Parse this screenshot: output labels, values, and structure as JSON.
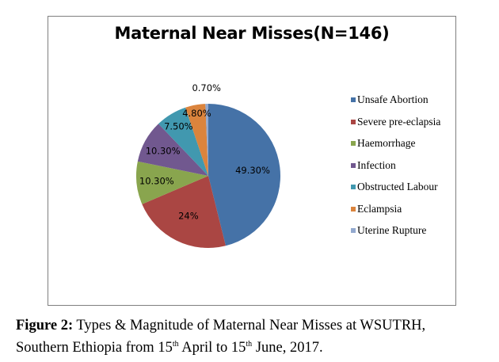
{
  "chart_data": {
    "type": "pie",
    "title": "Maternal Near Misses(N=146)",
    "slices": [
      {
        "name": "Unsafe Abortion",
        "value": 49.3,
        "label": "49.30%",
        "color": "#4572a7"
      },
      {
        "name": "Severe pre-eclapsia",
        "value": 24,
        "label": "24%",
        "color": "#aa4643"
      },
      {
        "name": "Haemorrhage",
        "value": 10.3,
        "label": "10.30%",
        "color": "#89a54e"
      },
      {
        "name": "Infection",
        "value": 10.3,
        "label": "10.30%",
        "color": "#71588f"
      },
      {
        "name": "Obstructed Labour",
        "value": 7.5,
        "label": "7.50%",
        "color": "#4198af"
      },
      {
        "name": "Eclampsia",
        "value": 4.8,
        "label": "4.80%",
        "color": "#db843d"
      },
      {
        "name": "Uterine Rupture",
        "value": 0.7,
        "label": "0.70%",
        "color": "#93a9cf"
      }
    ],
    "legend_position": "right"
  },
  "caption": {
    "label": "Figure 2:",
    "line1": " Types & Magnitude of Maternal Near Misses at WSUTRH,",
    "line2a": "Southern Ethiopia from 15",
    "sup1": "th",
    "line2b": " April to 15",
    "sup2": "th",
    "line2c": " June, 2017."
  }
}
